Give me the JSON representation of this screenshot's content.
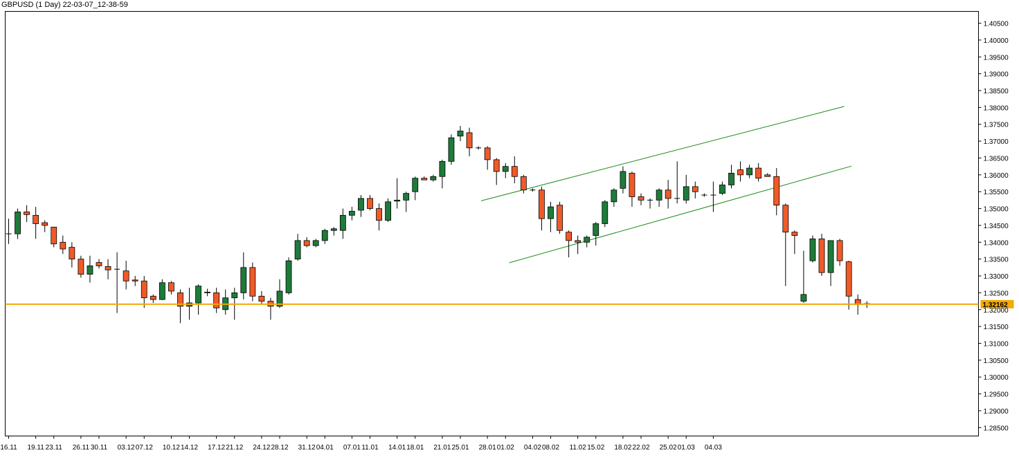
{
  "title": "GBPUSD (1 Day) 22-03-07_12-38-59",
  "chart_data": {
    "type": "candlestick",
    "symbol": "GBPUSD",
    "timeframe": "1 Day",
    "colors": {
      "up": "#1e7b3a",
      "down": "#f05a28",
      "wick": "#000000",
      "trendline": "#1a8a1a",
      "price_line": "#f2a900",
      "price_label_bg": "#f2a900"
    },
    "ylim": [
      1.2825,
      1.4085
    ],
    "yticks": [
      "1.40500",
      "1.40000",
      "1.39500",
      "1.39000",
      "1.38500",
      "1.38000",
      "1.37500",
      "1.37000",
      "1.36500",
      "1.36000",
      "1.35500",
      "1.35000",
      "1.34500",
      "1.34000",
      "1.33500",
      "1.33000",
      "1.32500",
      "1.32000",
      "1.31500",
      "1.31000",
      "1.30500",
      "1.30000",
      "1.29500",
      "1.29000",
      "1.28500"
    ],
    "xticks": [
      {
        "label": "16.11",
        "index": 0
      },
      {
        "label": "19.11",
        "index": 3
      },
      {
        "label": "23.11",
        "index": 5
      },
      {
        "label": "26.11",
        "index": 8
      },
      {
        "label": "30.11",
        "index": 10
      },
      {
        "label": "03.12",
        "index": 13
      },
      {
        "label": "07.12",
        "index": 15
      },
      {
        "label": "10.12",
        "index": 18
      },
      {
        "label": "14.12",
        "index": 20
      },
      {
        "label": "17.12",
        "index": 23
      },
      {
        "label": "21.12",
        "index": 25
      },
      {
        "label": "24.12",
        "index": 28
      },
      {
        "label": "28.12",
        "index": 30
      },
      {
        "label": "31.12",
        "index": 33
      },
      {
        "label": "04.01",
        "index": 35
      },
      {
        "label": "07.01",
        "index": 38
      },
      {
        "label": "11.01",
        "index": 40
      },
      {
        "label": "14.01",
        "index": 43
      },
      {
        "label": "18.01",
        "index": 45
      },
      {
        "label": "21.01",
        "index": 48
      },
      {
        "label": "25.01",
        "index": 50
      },
      {
        "label": "28.01",
        "index": 53
      },
      {
        "label": "01.02",
        "index": 55
      },
      {
        "label": "04.02",
        "index": 58
      },
      {
        "label": "08.02",
        "index": 60
      },
      {
        "label": "11.02",
        "index": 63
      },
      {
        "label": "15.02",
        "index": 65
      },
      {
        "label": "18.02",
        "index": 68
      },
      {
        "label": "22.02",
        "index": 70
      },
      {
        "label": "25.02",
        "index": 73
      },
      {
        "label": "01.03",
        "index": 75
      },
      {
        "label": "04.03",
        "index": 78
      }
    ],
    "current_price": "1.32162",
    "current_price_value": 1.32162,
    "candles": [
      {
        "o": 1.3425,
        "h": 1.347,
        "l": 1.3395,
        "c": 1.3425
      },
      {
        "o": 1.3425,
        "h": 1.35,
        "l": 1.341,
        "c": 1.349
      },
      {
        "o": 1.349,
        "h": 1.351,
        "l": 1.346,
        "c": 1.3482
      },
      {
        "o": 1.348,
        "h": 1.3505,
        "l": 1.341,
        "c": 1.3455
      },
      {
        "o": 1.3458,
        "h": 1.3465,
        "l": 1.343,
        "c": 1.345
      },
      {
        "o": 1.3445,
        "h": 1.3445,
        "l": 1.3385,
        "c": 1.3395
      },
      {
        "o": 1.34,
        "h": 1.342,
        "l": 1.3365,
        "c": 1.338
      },
      {
        "o": 1.3385,
        "h": 1.34,
        "l": 1.3325,
        "c": 1.335
      },
      {
        "o": 1.335,
        "h": 1.336,
        "l": 1.3295,
        "c": 1.3305
      },
      {
        "o": 1.3305,
        "h": 1.336,
        "l": 1.328,
        "c": 1.333
      },
      {
        "o": 1.334,
        "h": 1.335,
        "l": 1.3322,
        "c": 1.333
      },
      {
        "o": 1.3328,
        "h": 1.335,
        "l": 1.329,
        "c": 1.3318
      },
      {
        "o": 1.332,
        "h": 1.337,
        "l": 1.319,
        "c": 1.332
      },
      {
        "o": 1.3315,
        "h": 1.3345,
        "l": 1.326,
        "c": 1.3285
      },
      {
        "o": 1.3288,
        "h": 1.33,
        "l": 1.327,
        "c": 1.3285
      },
      {
        "o": 1.3285,
        "h": 1.33,
        "l": 1.3205,
        "c": 1.3235
      },
      {
        "o": 1.324,
        "h": 1.3245,
        "l": 1.322,
        "c": 1.323
      },
      {
        "o": 1.323,
        "h": 1.329,
        "l": 1.3228,
        "c": 1.328
      },
      {
        "o": 1.328,
        "h": 1.3285,
        "l": 1.3245,
        "c": 1.3255
      },
      {
        "o": 1.325,
        "h": 1.326,
        "l": 1.316,
        "c": 1.321
      },
      {
        "o": 1.321,
        "h": 1.3265,
        "l": 1.317,
        "c": 1.322
      },
      {
        "o": 1.322,
        "h": 1.3275,
        "l": 1.3185,
        "c": 1.327
      },
      {
        "o": 1.3252,
        "h": 1.3262,
        "l": 1.324,
        "c": 1.325
      },
      {
        "o": 1.325,
        "h": 1.3265,
        "l": 1.319,
        "c": 1.3205
      },
      {
        "o": 1.32,
        "h": 1.326,
        "l": 1.3185,
        "c": 1.3235
      },
      {
        "o": 1.3235,
        "h": 1.3265,
        "l": 1.317,
        "c": 1.325
      },
      {
        "o": 1.325,
        "h": 1.337,
        "l": 1.323,
        "c": 1.3325
      },
      {
        "o": 1.3325,
        "h": 1.334,
        "l": 1.3225,
        "c": 1.324
      },
      {
        "o": 1.324,
        "h": 1.3255,
        "l": 1.3215,
        "c": 1.3225
      },
      {
        "o": 1.3225,
        "h": 1.3235,
        "l": 1.317,
        "c": 1.321
      },
      {
        "o": 1.321,
        "h": 1.329,
        "l": 1.3205,
        "c": 1.3255
      },
      {
        "o": 1.325,
        "h": 1.3355,
        "l": 1.3245,
        "c": 1.3345
      },
      {
        "o": 1.335,
        "h": 1.3425,
        "l": 1.3345,
        "c": 1.3405
      },
      {
        "o": 1.3405,
        "h": 1.3415,
        "l": 1.3385,
        "c": 1.339
      },
      {
        "o": 1.339,
        "h": 1.341,
        "l": 1.3385,
        "c": 1.3405
      },
      {
        "o": 1.3405,
        "h": 1.344,
        "l": 1.3395,
        "c": 1.3435
      },
      {
        "o": 1.3435,
        "h": 1.3445,
        "l": 1.342,
        "c": 1.344
      },
      {
        "o": 1.3435,
        "h": 1.35,
        "l": 1.341,
        "c": 1.348
      },
      {
        "o": 1.348,
        "h": 1.3505,
        "l": 1.3465,
        "c": 1.3492
      },
      {
        "o": 1.3495,
        "h": 1.354,
        "l": 1.3475,
        "c": 1.353
      },
      {
        "o": 1.353,
        "h": 1.354,
        "l": 1.3495,
        "c": 1.35
      },
      {
        "o": 1.35,
        "h": 1.3515,
        "l": 1.3435,
        "c": 1.3465
      },
      {
        "o": 1.3465,
        "h": 1.353,
        "l": 1.346,
        "c": 1.352
      },
      {
        "o": 1.3522,
        "h": 1.359,
        "l": 1.35,
        "c": 1.3525
      },
      {
        "o": 1.3525,
        "h": 1.355,
        "l": 1.349,
        "c": 1.3545
      },
      {
        "o": 1.355,
        "h": 1.3595,
        "l": 1.3525,
        "c": 1.359
      },
      {
        "o": 1.359,
        "h": 1.3595,
        "l": 1.3585,
        "c": 1.3585
      },
      {
        "o": 1.3585,
        "h": 1.36,
        "l": 1.358,
        "c": 1.3595
      },
      {
        "o": 1.3595,
        "h": 1.3645,
        "l": 1.356,
        "c": 1.364
      },
      {
        "o": 1.364,
        "h": 1.372,
        "l": 1.363,
        "c": 1.371
      },
      {
        "o": 1.3715,
        "h": 1.3745,
        "l": 1.37,
        "c": 1.373
      },
      {
        "o": 1.3725,
        "h": 1.374,
        "l": 1.3655,
        "c": 1.368
      },
      {
        "o": 1.368,
        "h": 1.3685,
        "l": 1.3675,
        "c": 1.368
      },
      {
        "o": 1.368,
        "h": 1.3685,
        "l": 1.3615,
        "c": 1.3645
      },
      {
        "o": 1.3645,
        "h": 1.365,
        "l": 1.357,
        "c": 1.361
      },
      {
        "o": 1.361,
        "h": 1.3635,
        "l": 1.359,
        "c": 1.3625
      },
      {
        "o": 1.3625,
        "h": 1.3655,
        "l": 1.3575,
        "c": 1.3595
      },
      {
        "o": 1.3595,
        "h": 1.36,
        "l": 1.3545,
        "c": 1.3555
      },
      {
        "o": 1.3555,
        "h": 1.356,
        "l": 1.355,
        "c": 1.3555
      },
      {
        "o": 1.3555,
        "h": 1.3565,
        "l": 1.3435,
        "c": 1.347
      },
      {
        "o": 1.347,
        "h": 1.352,
        "l": 1.343,
        "c": 1.3505
      },
      {
        "o": 1.351,
        "h": 1.352,
        "l": 1.3425,
        "c": 1.3435
      },
      {
        "o": 1.343,
        "h": 1.3435,
        "l": 1.3355,
        "c": 1.3405
      },
      {
        "o": 1.3405,
        "h": 1.342,
        "l": 1.3365,
        "c": 1.34
      },
      {
        "o": 1.34,
        "h": 1.342,
        "l": 1.3385,
        "c": 1.3415
      },
      {
        "o": 1.342,
        "h": 1.346,
        "l": 1.339,
        "c": 1.3455
      },
      {
        "o": 1.3455,
        "h": 1.3525,
        "l": 1.3445,
        "c": 1.352
      },
      {
        "o": 1.352,
        "h": 1.356,
        "l": 1.3505,
        "c": 1.3555
      },
      {
        "o": 1.356,
        "h": 1.3625,
        "l": 1.3545,
        "c": 1.361
      },
      {
        "o": 1.3605,
        "h": 1.361,
        "l": 1.3505,
        "c": 1.3535
      },
      {
        "o": 1.3535,
        "h": 1.3545,
        "l": 1.351,
        "c": 1.3525
      },
      {
        "o": 1.3525,
        "h": 1.353,
        "l": 1.35,
        "c": 1.3525
      },
      {
        "o": 1.3525,
        "h": 1.356,
        "l": 1.3505,
        "c": 1.3555
      },
      {
        "o": 1.3555,
        "h": 1.3585,
        "l": 1.35,
        "c": 1.353
      },
      {
        "o": 1.353,
        "h": 1.364,
        "l": 1.3515,
        "c": 1.353
      },
      {
        "o": 1.3525,
        "h": 1.36,
        "l": 1.3515,
        "c": 1.3565
      },
      {
        "o": 1.3565,
        "h": 1.358,
        "l": 1.353,
        "c": 1.355
      },
      {
        "o": 1.354,
        "h": 1.3545,
        "l": 1.3535,
        "c": 1.354
      },
      {
        "o": 1.354,
        "h": 1.358,
        "l": 1.349,
        "c": 1.354
      },
      {
        "o": 1.3545,
        "h": 1.358,
        "l": 1.354,
        "c": 1.357
      },
      {
        "o": 1.357,
        "h": 1.363,
        "l": 1.356,
        "c": 1.3605
      },
      {
        "o": 1.3615,
        "h": 1.364,
        "l": 1.358,
        "c": 1.36
      },
      {
        "o": 1.36,
        "h": 1.363,
        "l": 1.359,
        "c": 1.362
      },
      {
        "o": 1.362,
        "h": 1.3635,
        "l": 1.358,
        "c": 1.359
      },
      {
        "o": 1.36,
        "h": 1.3605,
        "l": 1.3595,
        "c": 1.3595
      },
      {
        "o": 1.3595,
        "h": 1.362,
        "l": 1.348,
        "c": 1.351
      },
      {
        "o": 1.351,
        "h": 1.3515,
        "l": 1.327,
        "c": 1.343
      },
      {
        "o": 1.343,
        "h": 1.3435,
        "l": 1.3365,
        "c": 1.342
      },
      {
        "o": 1.3225,
        "h": 1.3375,
        "l": 1.322,
        "c": 1.3245
      },
      {
        "o": 1.3345,
        "h": 1.342,
        "l": 1.334,
        "c": 1.341
      },
      {
        "o": 1.341,
        "h": 1.3425,
        "l": 1.33,
        "c": 1.331
      },
      {
        "o": 1.331,
        "h": 1.3405,
        "l": 1.327,
        "c": 1.3405
      },
      {
        "o": 1.3405,
        "h": 1.341,
        "l": 1.333,
        "c": 1.3345
      },
      {
        "o": 1.3342,
        "h": 1.3345,
        "l": 1.32,
        "c": 1.324
      },
      {
        "o": 1.323,
        "h": 1.3245,
        "l": 1.3185,
        "c": 1.3215
      },
      {
        "o": 1.3218,
        "h": 1.3225,
        "l": 1.3205,
        "c": 1.3216
      }
    ],
    "trendlines": [
      {
        "x1": 52.3,
        "y1": 1.3523,
        "x2": 92.5,
        "y2": 1.3803
      },
      {
        "x1": 55.4,
        "y1": 1.3339,
        "x2": 93.3,
        "y2": 1.3626
      }
    ],
    "grid": false
  }
}
